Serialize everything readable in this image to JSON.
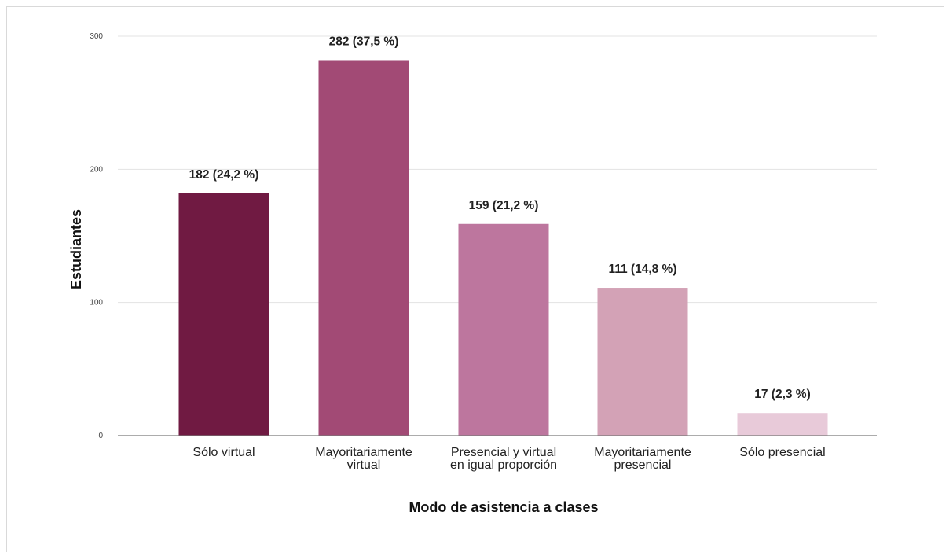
{
  "chart_data": {
    "type": "bar",
    "categories": [
      [
        "Sólo virtual"
      ],
      [
        "Mayoritariamente",
        "virtual"
      ],
      [
        "Presencial y virtual",
        "en igual proporción"
      ],
      [
        "Mayoritariamente",
        "presencial"
      ],
      [
        "Sólo presencial"
      ]
    ],
    "values": [
      182,
      282,
      159,
      111,
      17
    ],
    "data_labels": [
      "182 (24,2 %)",
      "282 (37,5 %)",
      "159 (21,2 %)",
      "111 (14,8 %)",
      "17 (2,3 %)"
    ],
    "colors": [
      "#701a42",
      "#a24a75",
      "#bd769e",
      "#d3a2b6",
      "#e8cad9"
    ],
    "title": "",
    "xlabel": "Modo de asistencia a clases",
    "ylabel": "Estudiantes",
    "ylim": [
      0,
      300
    ],
    "yticks": [
      0,
      100,
      200,
      300
    ],
    "grid": true,
    "legend": "none"
  }
}
